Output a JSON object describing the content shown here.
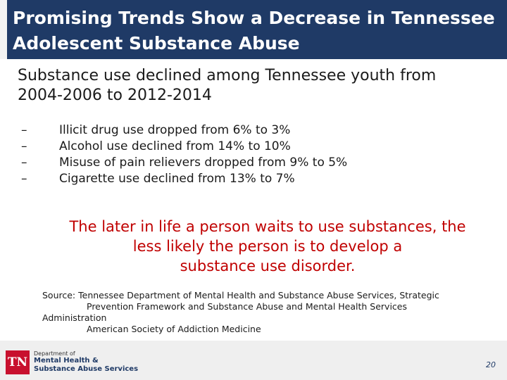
{
  "title": {
    "line1": "Promising Trends Show a Decrease in Tennessee",
    "line2": "Adolescent Substance Abuse"
  },
  "intro": {
    "line1": "Substance use declined among Tennessee youth from",
    "line2": "2004-2006 to 2012-2014"
  },
  "bullets": [
    {
      "dash": "–",
      "text": "Illicit drug use dropped from 6% to 3%"
    },
    {
      "dash": "–",
      "text": "Alcohol use declined from 14% to 10%"
    },
    {
      "dash": "–",
      "text": "Misuse of pain relievers dropped from 9% to 5%"
    },
    {
      "dash": "–",
      "text": "Cigarette use declined from 13% to 7%"
    }
  ],
  "callout": {
    "line1": "The later in life a person waits to use substances, the",
    "line2": "less likely the person is to develop a",
    "line3": "substance use disorder."
  },
  "source": {
    "line1": "Source:  Tennessee Department of Mental Health and Substance Abuse Services, Strategic",
    "line2": "Prevention Framework and Substance Abuse and Mental Health Services",
    "line3": "Administration",
    "line4": "American Society of Addiction Medicine"
  },
  "footer": {
    "logo_mark": "TN",
    "logo_line1": "Department of",
    "logo_line2": "Mental Health &",
    "logo_line3": "Substance Abuse Services",
    "page_number": "20"
  },
  "colors": {
    "title_bg": "#1f3a66",
    "callout": "#c00000",
    "logo_red": "#c8102e"
  }
}
